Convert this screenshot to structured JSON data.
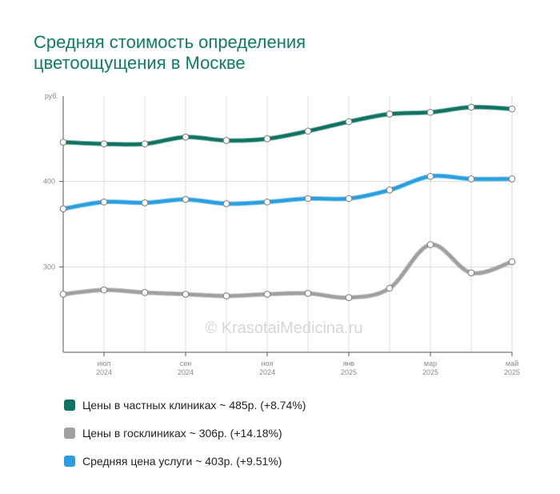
{
  "title_line1": "Средняя стоимость определения",
  "title_line2": "цветоощущения в Москве",
  "watermark": "© KrasotaiMedicina.ru",
  "chart_data": {
    "type": "line",
    "y_unit_label": "руб.",
    "ylim": [
      200,
      500
    ],
    "yticks": [
      300,
      400
    ],
    "x_tick_labels": [
      {
        "index": 1,
        "month": "июл",
        "year": "2024"
      },
      {
        "index": 3,
        "month": "сен",
        "year": "2024"
      },
      {
        "index": 5,
        "month": "ноя",
        "year": "2024"
      },
      {
        "index": 7,
        "month": "янв",
        "year": "2025"
      },
      {
        "index": 9,
        "month": "мар",
        "year": "2025"
      },
      {
        "index": 11,
        "month": "май",
        "year": "2025"
      }
    ],
    "x": [
      "2024-06",
      "2024-07",
      "2024-08",
      "2024-09",
      "2024-10",
      "2024-11",
      "2024-12",
      "2025-01",
      "2025-02",
      "2025-03",
      "2025-04",
      "2025-05"
    ],
    "grid": true,
    "legend_position": "bottom",
    "series": [
      {
        "name": "Цены в частных клиниках",
        "color": "#0f7263",
        "values": [
          446,
          444,
          444,
          452,
          448,
          450,
          459,
          470,
          479,
          481,
          487,
          485
        ]
      },
      {
        "name": "Цены в госклиниках",
        "color": "#a0a0a0",
        "values": [
          268,
          273,
          270,
          268,
          266,
          268,
          269,
          264,
          275,
          326,
          293,
          306
        ]
      },
      {
        "name": "Средняя цена услуги",
        "color": "#2a9fe0",
        "values": [
          368,
          376,
          375,
          379,
          374,
          376,
          380,
          380,
          390,
          406,
          403,
          403
        ]
      }
    ]
  },
  "legend": [
    {
      "label": "Цены в частных клиниках ~ 485р. (+8.74%)",
      "color": "#0f7263"
    },
    {
      "label": "Цены в госклиниках ~ 306р. (+14.18%)",
      "color": "#a0a0a0"
    },
    {
      "label": "Средняя цена услуги ~ 403р. (+9.51%)",
      "color": "#2a9fe0"
    }
  ]
}
